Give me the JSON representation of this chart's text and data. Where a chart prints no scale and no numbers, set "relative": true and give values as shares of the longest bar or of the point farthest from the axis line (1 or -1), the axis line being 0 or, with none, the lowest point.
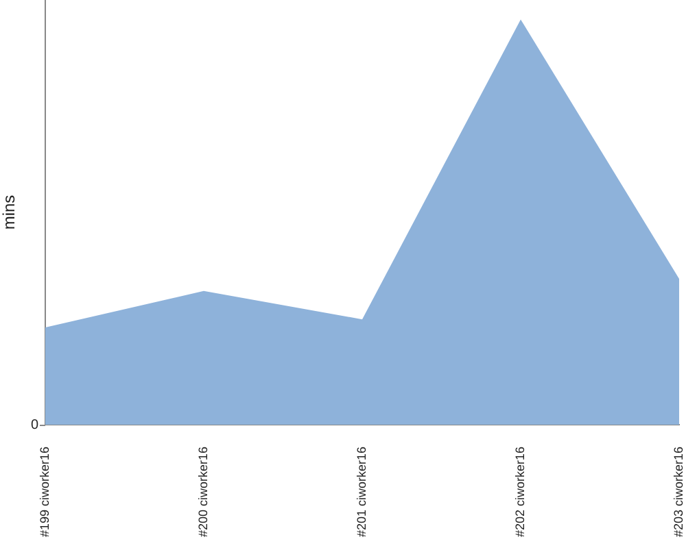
{
  "chart_data": {
    "type": "area",
    "ylabel": "mins",
    "categories": [
      "#199 ciworker16",
      "#200 ciworker16",
      "#201 ciworker16",
      "#202 ciworker16",
      "#203 ciworker16"
    ],
    "values": [
      0.24,
      0.33,
      0.26,
      1,
      0.36
    ],
    "color": "#8eb2da",
    "relative": true,
    "annotations": [
      "0"
    ]
  }
}
